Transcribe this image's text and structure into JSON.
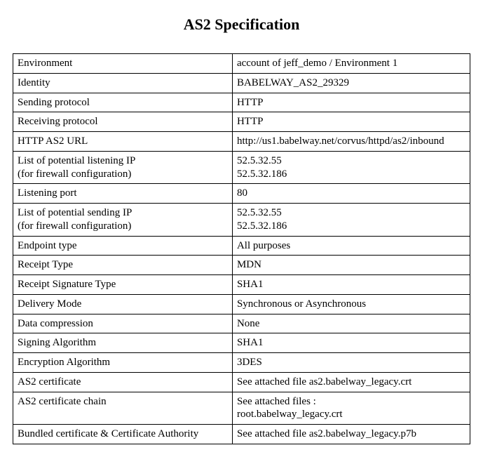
{
  "title": "AS2 Specification",
  "rows": [
    {
      "label": "Environment",
      "value": "account of jeff_demo / Environment 1"
    },
    {
      "label": "Identity",
      "value": "BABELWAY_AS2_29329"
    },
    {
      "label": "Sending protocol",
      "value": "HTTP"
    },
    {
      "label": "Receiving protocol",
      "value": "HTTP"
    },
    {
      "label": "HTTP AS2 URL",
      "value": "http://us1.babelway.net/corvus/httpd/as2/inbound"
    },
    {
      "label": "List of potential listening IP\n(for firewall configuration)",
      "value": "52.5.32.55\n52.5.32.186"
    },
    {
      "label": "Listening port",
      "value": "80"
    },
    {
      "label": "List of potential sending IP\n(for firewall configuration)",
      "value": "52.5.32.55\n52.5.32.186"
    },
    {
      "label": "Endpoint type",
      "value": "All purposes"
    },
    {
      "label": "Receipt Type",
      "value": "MDN"
    },
    {
      "label": "Receipt Signature Type",
      "value": "SHA1"
    },
    {
      "label": "Delivery Mode",
      "value": "Synchronous or Asynchronous"
    },
    {
      "label": "Data compression",
      "value": "None"
    },
    {
      "label": "Signing Algorithm",
      "value": "SHA1"
    },
    {
      "label": "Encryption Algorithm",
      "value": "3DES"
    },
    {
      "label": "AS2 certificate",
      "value": "See attached file as2.babelway_legacy.crt"
    },
    {
      "label": "AS2 certificate chain",
      "value": "See attached files :\nroot.babelway_legacy.crt"
    },
    {
      "label": "Bundled certificate & Certificate Authority",
      "value": "See attached file as2.babelway_legacy.p7b"
    }
  ],
  "style": {
    "title_fontsize": 22,
    "body_fontsize": 15,
    "font_family": "Times New Roman",
    "border_color": "#000000",
    "background_color": "#ffffff",
    "text_color": "#000000",
    "label_col_width_pct": 48,
    "value_col_width_pct": 52
  }
}
